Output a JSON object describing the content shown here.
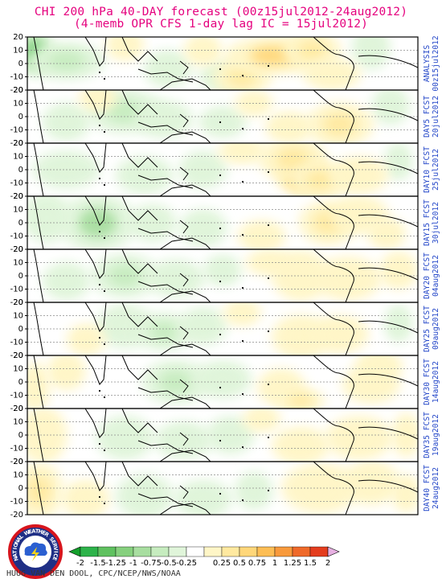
{
  "title_line1": "CHI 200 hPa 40-DAY forecast (00z15jul2012-24aug2012)",
  "title_line2": "(4-memb OPR CFS 1-day lag IC = 15jul2012)",
  "credit": "HUUG VAN DEN DOOL, CPC/NCEP/NWS/NOAA",
  "logo_text": "NATIONAL WEATHER SERVICE",
  "colors": {
    "title": "#e5007e",
    "side_label": "#2346c8",
    "neg": [
      "#2db34a",
      "#5fc15f",
      "#86d07e",
      "#a8dea0",
      "#c6ecbf",
      "#e0f5da"
    ],
    "pos": [
      "#fff6c7",
      "#ffe9a0",
      "#ffd77a",
      "#fdbe55",
      "#f89a3c",
      "#ef6a2a",
      "#e43d1e"
    ],
    "tri_low": "#14a02c",
    "tri_high": "#e7b0e2"
  },
  "chart_data": {
    "type": "heatmap",
    "field": "CHI 200 hPa",
    "ylim": [
      -20,
      20
    ],
    "yticks": [
      "20",
      "10",
      "0",
      "-10",
      "-20"
    ],
    "colorbar_ticks": [
      "-2",
      "-1.5",
      "-1.25",
      "-1",
      "-0.75",
      "-0.5",
      "-0.25",
      "0.25",
      "0.5",
      "0.75",
      "1",
      "1.25",
      "1.5",
      "2"
    ],
    "panels": [
      {
        "label1": "ANALYSIS",
        "label2": "00z15jul2012",
        "blobs": [
          [
            0.02,
            0.3,
            0.04,
            0.35,
            -1.3
          ],
          [
            0.1,
            0.45,
            0.08,
            0.3,
            -0.5
          ],
          [
            0.36,
            0.6,
            0.05,
            0.3,
            -0.4
          ],
          [
            0.5,
            0.75,
            0.05,
            0.25,
            -0.3
          ],
          [
            0.88,
            0.2,
            0.04,
            0.35,
            -0.4
          ],
          [
            0.55,
            0.75,
            0.06,
            0.3,
            0.6
          ],
          [
            0.63,
            0.35,
            0.1,
            0.3,
            0.9
          ],
          [
            0.73,
            0.25,
            0.06,
            0.3,
            0.6
          ],
          [
            0.78,
            0.7,
            0.06,
            0.25,
            0.4
          ],
          [
            0.25,
            0.15,
            0.04,
            0.25,
            0.4
          ],
          [
            0.45,
            0.25,
            0.04,
            0.25,
            0.3
          ]
        ]
      },
      {
        "label1": "DAY5 FCST",
        "label2": "20jul2012",
        "blobs": [
          [
            0.25,
            0.4,
            0.08,
            0.35,
            -0.5
          ],
          [
            0.35,
            0.55,
            0.06,
            0.3,
            -0.4
          ],
          [
            0.1,
            0.6,
            0.05,
            0.3,
            -0.3
          ],
          [
            0.5,
            0.6,
            0.05,
            0.25,
            -0.3
          ],
          [
            0.93,
            0.3,
            0.04,
            0.3,
            -0.35
          ],
          [
            0.8,
            0.65,
            0.07,
            0.35,
            0.6
          ],
          [
            0.67,
            0.7,
            0.05,
            0.25,
            0.3
          ],
          [
            0.18,
            0.15,
            0.04,
            0.2,
            0.25
          ],
          [
            0.58,
            0.25,
            0.04,
            0.2,
            0.25
          ]
        ]
      },
      {
        "label1": "DAY10 FCST",
        "label2": "25jul2012",
        "blobs": [
          [
            0.1,
            0.5,
            0.07,
            0.3,
            -0.4
          ],
          [
            0.3,
            0.6,
            0.06,
            0.3,
            -0.4
          ],
          [
            0.45,
            0.5,
            0.05,
            0.3,
            -0.3
          ],
          [
            0.95,
            0.35,
            0.03,
            0.3,
            -0.3
          ],
          [
            0.7,
            0.55,
            0.05,
            0.35,
            1.0
          ],
          [
            0.68,
            0.3,
            0.07,
            0.35,
            0.6
          ],
          [
            0.75,
            0.7,
            0.06,
            0.3,
            0.5
          ],
          [
            0.85,
            0.6,
            0.06,
            0.3,
            0.35
          ],
          [
            0.55,
            0.15,
            0.05,
            0.2,
            0.25
          ]
        ]
      },
      {
        "label1": "DAY15 FCST",
        "label2": "30jul2012",
        "blobs": [
          [
            0.18,
            0.55,
            0.04,
            0.18,
            -1.6
          ],
          [
            0.18,
            0.5,
            0.08,
            0.45,
            -0.9
          ],
          [
            0.05,
            0.4,
            0.05,
            0.4,
            -0.4
          ],
          [
            0.32,
            0.5,
            0.05,
            0.3,
            -0.35
          ],
          [
            0.45,
            0.6,
            0.05,
            0.3,
            -0.3
          ],
          [
            0.77,
            0.5,
            0.06,
            0.35,
            0.5
          ],
          [
            0.85,
            0.35,
            0.06,
            0.3,
            0.4
          ],
          [
            0.6,
            0.75,
            0.05,
            0.25,
            0.3
          ],
          [
            0.92,
            0.7,
            0.04,
            0.25,
            0.3
          ]
        ]
      },
      {
        "label1": "DAY20 FCST",
        "label2": "04aug2012",
        "blobs": [
          [
            0.25,
            0.5,
            0.07,
            0.35,
            -0.5
          ],
          [
            0.38,
            0.55,
            0.06,
            0.3,
            -0.35
          ],
          [
            0.1,
            0.6,
            0.05,
            0.3,
            -0.3
          ],
          [
            0.5,
            0.4,
            0.04,
            0.25,
            -0.3
          ],
          [
            0.7,
            0.5,
            0.06,
            0.4,
            0.45
          ],
          [
            0.82,
            0.55,
            0.07,
            0.35,
            0.4
          ],
          [
            0.95,
            0.4,
            0.04,
            0.3,
            0.25
          ],
          [
            0.62,
            0.25,
            0.05,
            0.2,
            0.25
          ]
        ]
      },
      {
        "label1": "DAY25 FCST",
        "label2": "09aug2012",
        "blobs": [
          [
            0.25,
            0.45,
            0.06,
            0.35,
            -0.45
          ],
          [
            0.35,
            0.55,
            0.06,
            0.3,
            -0.5
          ],
          [
            0.45,
            0.45,
            0.05,
            0.3,
            -0.3
          ],
          [
            0.95,
            0.4,
            0.03,
            0.3,
            -0.3
          ],
          [
            0.7,
            0.65,
            0.06,
            0.35,
            0.4
          ],
          [
            0.8,
            0.6,
            0.06,
            0.3,
            0.35
          ],
          [
            0.15,
            0.7,
            0.04,
            0.25,
            0.25
          ],
          [
            0.55,
            0.2,
            0.04,
            0.2,
            0.25
          ]
        ]
      },
      {
        "label1": "DAY30 FCST",
        "label2": "14aug2012",
        "blobs": [
          [
            0.02,
            0.6,
            0.03,
            0.4,
            0.45
          ],
          [
            0.1,
            0.3,
            0.04,
            0.3,
            0.35
          ],
          [
            0.38,
            0.5,
            0.07,
            0.35,
            -0.5
          ],
          [
            0.5,
            0.45,
            0.06,
            0.3,
            -0.35
          ],
          [
            0.65,
            0.6,
            0.05,
            0.3,
            0.35
          ],
          [
            0.7,
            0.85,
            0.05,
            0.2,
            0.5
          ],
          [
            0.88,
            0.55,
            0.06,
            0.3,
            0.35
          ],
          [
            0.9,
            0.2,
            0.05,
            0.25,
            0.25
          ]
        ]
      },
      {
        "label1": "DAY35 FCST",
        "label2": "19aug2012",
        "blobs": [
          [
            0.04,
            0.5,
            0.05,
            0.45,
            0.45
          ],
          [
            0.25,
            0.55,
            0.06,
            0.35,
            -0.45
          ],
          [
            0.4,
            0.6,
            0.06,
            0.3,
            -0.45
          ],
          [
            0.52,
            0.5,
            0.05,
            0.3,
            -0.3
          ],
          [
            0.7,
            0.7,
            0.06,
            0.3,
            0.45
          ],
          [
            0.85,
            0.55,
            0.07,
            0.35,
            0.4
          ],
          [
            0.97,
            0.5,
            0.03,
            0.35,
            0.25
          ],
          [
            0.6,
            0.2,
            0.04,
            0.2,
            0.25
          ]
        ]
      },
      {
        "label1": "DAY40 FCST",
        "label2": "24aug2012",
        "blobs": [
          [
            0.03,
            0.55,
            0.05,
            0.45,
            0.55
          ],
          [
            0.15,
            0.7,
            0.05,
            0.3,
            0.35
          ],
          [
            0.3,
            0.65,
            0.06,
            0.35,
            -0.35
          ],
          [
            0.45,
            0.7,
            0.06,
            0.3,
            -0.45
          ],
          [
            0.58,
            0.55,
            0.04,
            0.3,
            -0.3
          ],
          [
            0.75,
            0.5,
            0.08,
            0.4,
            0.4
          ],
          [
            0.88,
            0.4,
            0.06,
            0.35,
            0.35
          ],
          [
            0.97,
            0.6,
            0.03,
            0.3,
            0.3
          ]
        ]
      }
    ]
  }
}
